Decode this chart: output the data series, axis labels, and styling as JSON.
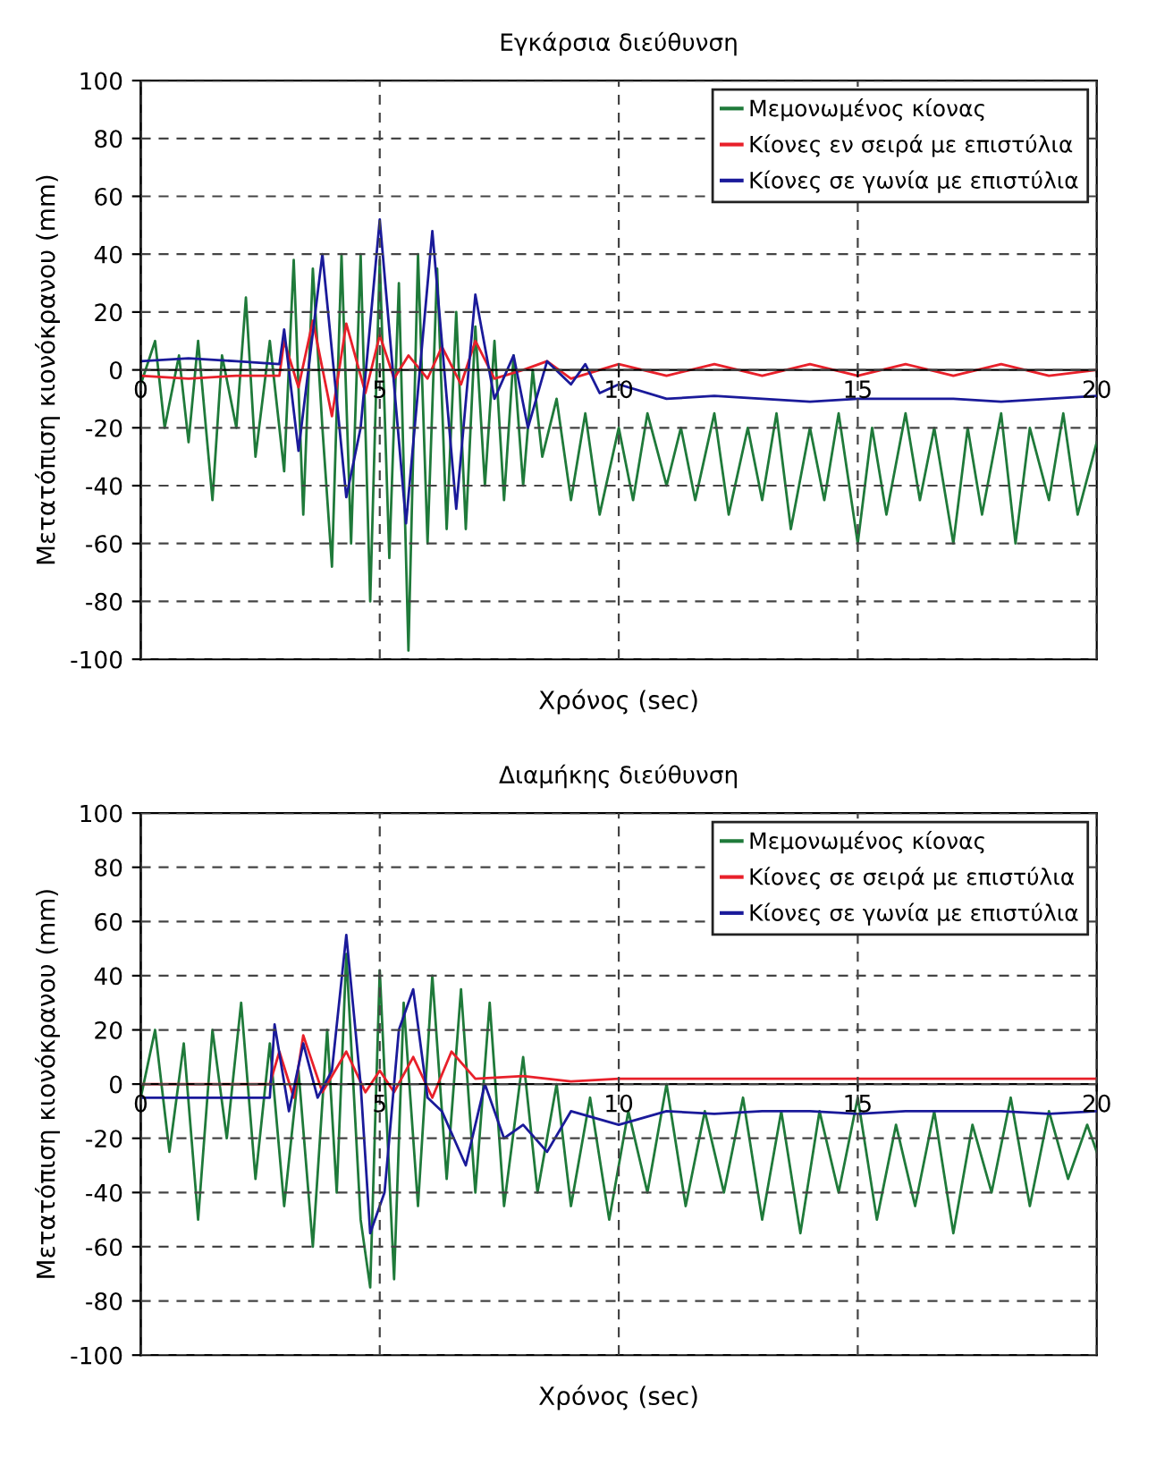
{
  "chart_data": [
    {
      "type": "line",
      "title": "Εγκάρσια διεύθυνση",
      "xlabel": "Χρόνος (sec)",
      "ylabel": "Μετατόπιση κιονόκρανου (mm)",
      "xlim": [
        0,
        20
      ],
      "ylim": [
        -100,
        100
      ],
      "xticks": [
        0,
        5,
        10,
        15,
        20
      ],
      "yticks": [
        -100,
        -80,
        -60,
        -40,
        -20,
        0,
        20,
        40,
        60,
        80,
        100
      ],
      "grid": true,
      "legend": "top right",
      "line_style": "solid",
      "marker": "none",
      "series": [
        {
          "name": "Μεμονωμένος κίονας",
          "color": "#1f7a3a",
          "x": [
            0,
            0.3,
            0.5,
            0.8,
            1.0,
            1.2,
            1.5,
            1.7,
            2.0,
            2.2,
            2.4,
            2.7,
            3.0,
            3.2,
            3.4,
            3.6,
            3.8,
            4.0,
            4.2,
            4.4,
            4.6,
            4.8,
            5.0,
            5.2,
            5.4,
            5.6,
            5.8,
            6.0,
            6.2,
            6.4,
            6.6,
            6.8,
            7.0,
            7.2,
            7.4,
            7.6,
            7.8,
            8.0,
            8.2,
            8.4,
            8.7,
            9.0,
            9.3,
            9.6,
            10.0,
            10.3,
            10.6,
            11.0,
            11.3,
            11.6,
            12.0,
            12.3,
            12.7,
            13.0,
            13.3,
            13.6,
            14.0,
            14.3,
            14.6,
            15.0,
            15.3,
            15.6,
            16.0,
            16.3,
            16.6,
            17.0,
            17.3,
            17.6,
            18.0,
            18.3,
            18.6,
            19.0,
            19.3,
            19.6,
            20.0
          ],
          "values": [
            -5,
            10,
            -20,
            5,
            -25,
            10,
            -45,
            5,
            -20,
            25,
            -30,
            10,
            -35,
            38,
            -50,
            35,
            -20,
            -68,
            40,
            -60,
            40,
            -80,
            38,
            -65,
            30,
            -97,
            40,
            -60,
            35,
            -55,
            20,
            -55,
            15,
            -40,
            10,
            -45,
            5,
            -40,
            0,
            -30,
            -10,
            -45,
            -15,
            -50,
            -20,
            -45,
            -15,
            -40,
            -20,
            -45,
            -15,
            -50,
            -20,
            -45,
            -15,
            -55,
            -20,
            -45,
            -15,
            -60,
            -20,
            -50,
            -15,
            -45,
            -20,
            -60,
            -20,
            -50,
            -15,
            -60,
            -20,
            -45,
            -15,
            -50,
            -25
          ]
        },
        {
          "name": "Κίονες εν σειρά με επιστύλια",
          "color": "#e8202a",
          "x": [
            0,
            1,
            2,
            2.9,
            3.0,
            3.3,
            3.6,
            4.0,
            4.3,
            4.7,
            5.0,
            5.3,
            5.6,
            6.0,
            6.3,
            6.7,
            7.0,
            7.4,
            8,
            8.5,
            9,
            10,
            11,
            12,
            13,
            14,
            15,
            16,
            17,
            18,
            19,
            20
          ],
          "values": [
            -2,
            -3,
            -2,
            -2,
            10,
            -6,
            17,
            -16,
            16,
            -8,
            12,
            -3,
            5,
            -3,
            8,
            -5,
            10,
            -3,
            0,
            3,
            -3,
            2,
            -2,
            2,
            -2,
            2,
            -2,
            2,
            -2,
            2,
            -2,
            0
          ]
        },
        {
          "name": "Κίονες σε γωνία με επιστύλια",
          "color": "#1a1a9a",
          "x": [
            0,
            1,
            2,
            2.9,
            3.0,
            3.3,
            3.8,
            4.3,
            4.6,
            5.0,
            5.55,
            6.1,
            6.6,
            7.0,
            7.4,
            7.8,
            8.1,
            8.5,
            9.0,
            9.3,
            9.6,
            10,
            11,
            12,
            13,
            14,
            15,
            16,
            17,
            18,
            19,
            20
          ],
          "values": [
            3,
            4,
            3,
            2,
            14,
            -28,
            40,
            -44,
            -20,
            52,
            -53,
            48,
            -48,
            26,
            -10,
            5,
            -20,
            3,
            -5,
            2,
            -8,
            -5,
            -10,
            -9,
            -10,
            -11,
            -10,
            -10,
            -10,
            -11,
            -10,
            -9
          ]
        }
      ]
    },
    {
      "type": "line",
      "title": "Διαμήκης διεύθυνση",
      "xlabel": "Χρόνος (sec)",
      "ylabel": "Μετατόπιση κιονόκρανου (mm)",
      "xlim": [
        0,
        20
      ],
      "ylim": [
        -100,
        100
      ],
      "xticks": [
        0,
        5,
        10,
        15,
        20
      ],
      "yticks": [
        -100,
        -80,
        -60,
        -40,
        -20,
        0,
        20,
        40,
        60,
        80,
        100
      ],
      "grid": true,
      "legend": "top right",
      "line_style": "solid",
      "marker": "none",
      "series": [
        {
          "name": "Μεμονωμένος κίονας",
          "color": "#1f7a3a",
          "x": [
            0,
            0.3,
            0.6,
            0.9,
            1.2,
            1.5,
            1.8,
            2.1,
            2.4,
            2.7,
            3.0,
            3.3,
            3.6,
            3.9,
            4.1,
            4.3,
            4.6,
            4.8,
            5.0,
            5.3,
            5.5,
            5.8,
            6.1,
            6.4,
            6.7,
            7.0,
            7.3,
            7.6,
            8.0,
            8.3,
            8.7,
            9.0,
            9.4,
            9.8,
            10.2,
            10.6,
            11,
            11.4,
            11.8,
            12.2,
            12.6,
            13,
            13.4,
            13.8,
            14.2,
            14.6,
            15,
            15.4,
            15.8,
            16.2,
            16.6,
            17,
            17.4,
            17.8,
            18.2,
            18.6,
            19,
            19.4,
            19.8,
            20
          ],
          "values": [
            -5,
            20,
            -25,
            15,
            -50,
            20,
            -20,
            30,
            -35,
            15,
            -45,
            5,
            -60,
            20,
            -40,
            48,
            -50,
            -75,
            42,
            -72,
            30,
            -45,
            40,
            -35,
            35,
            -40,
            30,
            -45,
            10,
            -40,
            0,
            -45,
            -5,
            -50,
            -10,
            -40,
            0,
            -45,
            -10,
            -40,
            -5,
            -50,
            -10,
            -55,
            -10,
            -40,
            -5,
            -50,
            -15,
            -45,
            -10,
            -55,
            -15,
            -40,
            -5,
            -45,
            -10,
            -35,
            -15,
            -25
          ]
        },
        {
          "name": "Κίονες σε σειρά με επιστύλια",
          "color": "#e8202a",
          "x": [
            0,
            2.7,
            2.9,
            3.2,
            3.4,
            3.8,
            4.3,
            4.7,
            5.0,
            5.3,
            5.7,
            6.1,
            6.5,
            7,
            8,
            9,
            10,
            12,
            14,
            16,
            18,
            20
          ],
          "values": [
            0,
            0,
            12,
            -5,
            18,
            -3,
            12,
            -3,
            5,
            -3,
            10,
            -5,
            12,
            2,
            3,
            1,
            2,
            2,
            2,
            2,
            2,
            2
          ]
        },
        {
          "name": "Κίονες σε γωνία με επιστύλια",
          "color": "#1a1a9a",
          "x": [
            0,
            2.7,
            2.8,
            3.1,
            3.4,
            3.7,
            4.0,
            4.3,
            4.6,
            4.8,
            5.1,
            5.4,
            5.7,
            6.0,
            6.3,
            6.8,
            7.2,
            7.6,
            8.0,
            8.5,
            9.0,
            10,
            11,
            12,
            13,
            14,
            15,
            16,
            17,
            18,
            19,
            20
          ],
          "values": [
            -5,
            -5,
            22,
            -10,
            15,
            -5,
            5,
            55,
            0,
            -55,
            -40,
            20,
            35,
            -5,
            -10,
            -30,
            0,
            -20,
            -15,
            -25,
            -10,
            -15,
            -10,
            -11,
            -10,
            -10,
            -11,
            -10,
            -10,
            -10,
            -11,
            -10
          ]
        }
      ]
    }
  ]
}
